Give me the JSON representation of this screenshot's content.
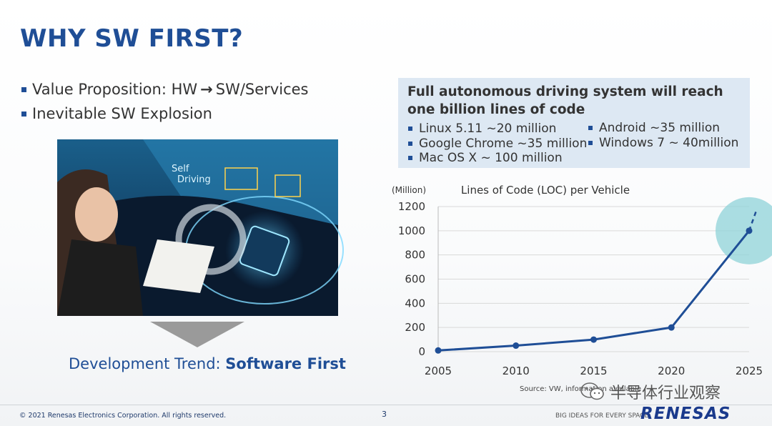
{
  "slide": {
    "title": "WHY SW FIRST?",
    "bullets": [
      {
        "pre": "Value Proposition: HW",
        "arrow": "→",
        "post": "SW/Services"
      },
      {
        "text": "Inevitable SW Explosion"
      }
    ],
    "image_labels": {
      "line1": "Self",
      "line2": "Driving"
    },
    "dev_trend": {
      "prefix": "Development Trend: ",
      "bold": "Software First"
    }
  },
  "info_box": {
    "title": "Full autonomous driving system will reach one billion lines of code",
    "col1": [
      "Linux 5.11 ~20 million",
      "Google Chrome ~35 million",
      "Mac OS X ~ 100 million"
    ],
    "col2": [
      "Android ~35 million",
      "Windows 7 ~ 40million"
    ]
  },
  "chart_data": {
    "type": "line",
    "title": "Lines of Code (LOC) per Vehicle",
    "ylabel": "(Million)",
    "xlabel": "",
    "x": [
      2005,
      2010,
      2015,
      2020,
      2025
    ],
    "series": [
      {
        "values": [
          10,
          50,
          100,
          200,
          1000
        ]
      }
    ],
    "projection": {
      "from": [
        2025,
        1000
      ],
      "to": [
        2025.5,
        1180
      ]
    },
    "highlight": {
      "x": 2025,
      "y": 1000
    },
    "ylim": [
      0,
      1200
    ],
    "yticks": [
      0,
      200,
      400,
      600,
      800,
      1000,
      1200
    ],
    "xticks": [
      "2005",
      "2010",
      "2015",
      "2020",
      "2025"
    ],
    "grid": "horizontal",
    "legend": "none",
    "source": "Source: VW, information available"
  },
  "footer": {
    "copyright": "© 2021 Renesas Electronics Corporation. All rights reserved.",
    "page": "3",
    "tagline": "BIG IDEAS FOR EVERY SPACE",
    "logo": "RENESAS"
  },
  "watermark": {
    "text": "半导体行业观察",
    "icon": "wechat-icon"
  },
  "colors": {
    "brand": "#1f4e96",
    "line": "#1f4e96",
    "highlight": "#8fd3d8",
    "panel": "#dde8f3"
  }
}
